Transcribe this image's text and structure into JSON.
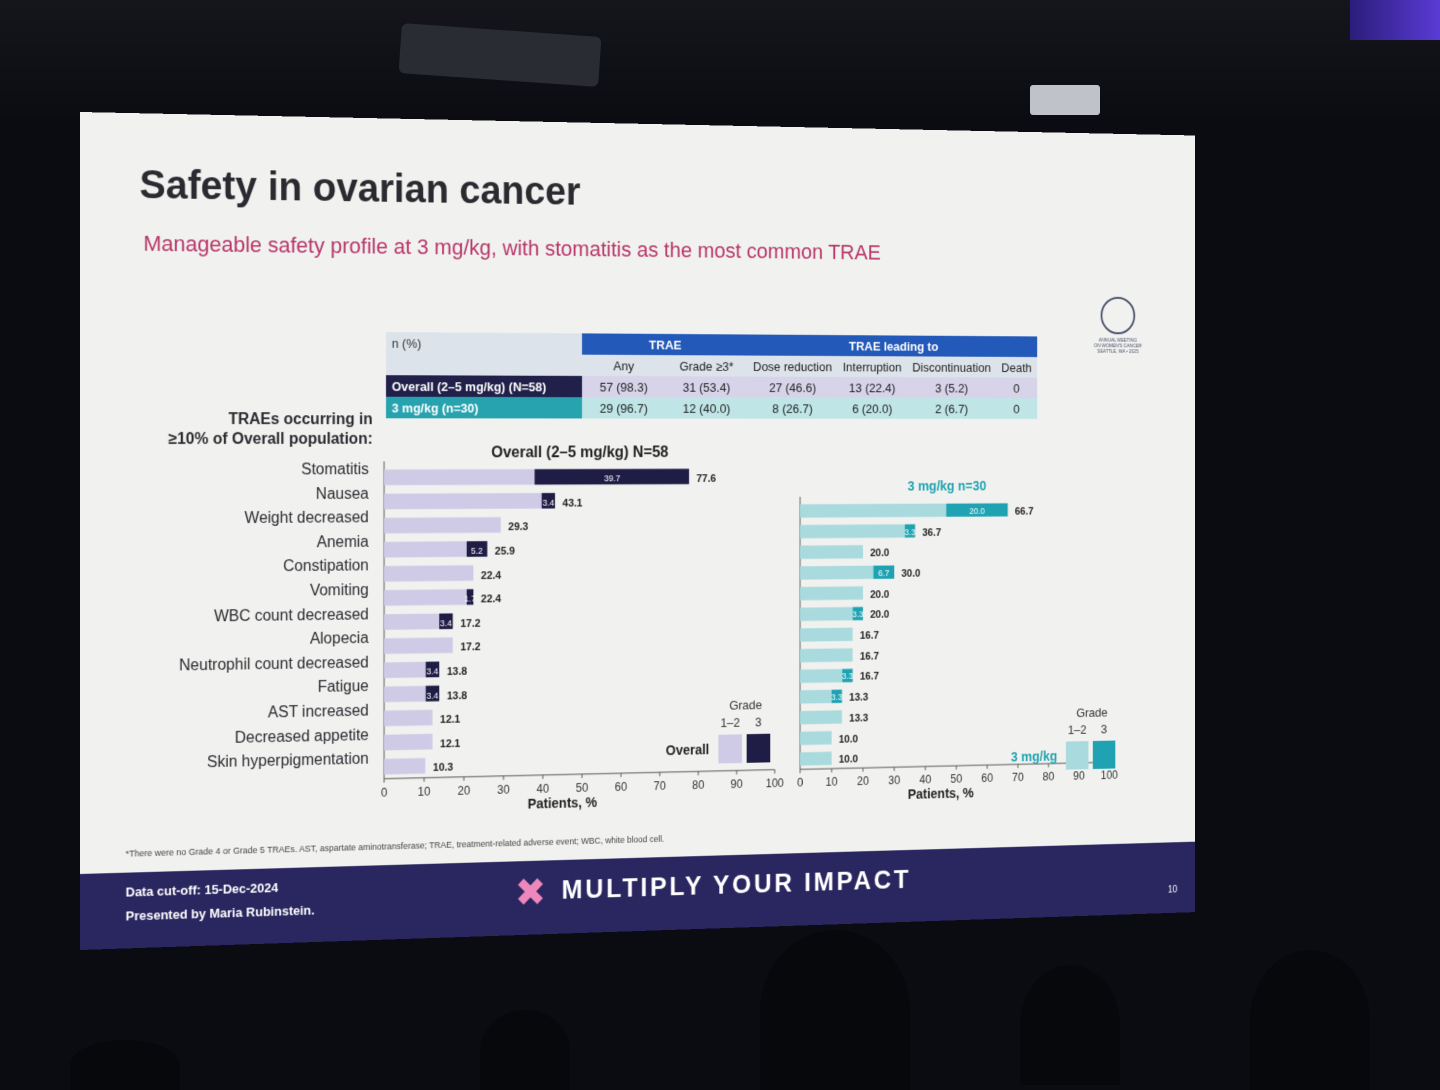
{
  "slide": {
    "title": "Safety in ovarian cancer",
    "subtitle": "Manageable safety profile at 3 mg/kg, with stomatitis as the most common TRAE",
    "logo_text": [
      "ANNUAL MEETING",
      "ON WOMEN'S CANCER",
      "SEATTLE, WA • 2025"
    ],
    "footnote": "*There were no Grade 4 or Grade 5 TRAEs. AST, aspartate aminotransferase; TRAE, treatment-related adverse event; WBC, white blood cell.",
    "cutoff": "Data cut-off: 15-Dec-2024",
    "presenter": "Presented by Maria Rubinstein.",
    "brand": "MULTIPLY YOUR IMPACT",
    "page_number": "10"
  },
  "table": {
    "n_label": "n (%)",
    "trae_label": "TRAE",
    "any_label": "Any",
    "grade3_label": "Grade ≥3*",
    "leading_label": "TRAE leading to",
    "columns": [
      "Dose reduction",
      "Interruption",
      "Discontinuation",
      "Death"
    ],
    "rows": [
      {
        "label": "Overall  (2–5 mg/kg) (N=58)",
        "any": "57 (98.3)",
        "grade3": "31 (53.4)",
        "dose_reduction": "27 (46.6)",
        "interruption": "13 (22.4)",
        "discontinuation": "3 (5.2)",
        "death": "0"
      },
      {
        "label": "3 mg/kg (n=30)",
        "any": "29 (96.7)",
        "grade3": "12 (40.0)",
        "dose_reduction": "8 (26.7)",
        "interruption": "6 (20.0)",
        "discontinuation": "2 (6.7)",
        "death": "0"
      }
    ]
  },
  "left_heading": [
    "TRAEs occurring in",
    "≥10% of Overall population:"
  ],
  "chart_data": [
    {
      "type": "bar",
      "orientation": "horizontal",
      "stacked": true,
      "title": "Overall (2–5 mg/kg) N=58",
      "xlabel": "Patients, %",
      "xlim": [
        0,
        100
      ],
      "xticks": [
        "0",
        "10",
        "20",
        "30",
        "40",
        "50",
        "60",
        "70",
        "80",
        "90",
        "100"
      ],
      "categories": [
        "Stomatitis",
        "Nausea",
        "Weight decreased",
        "Anemia",
        "Constipation",
        "Vomiting",
        "WBC count decreased",
        "Alopecia",
        "Neutrophil count decreased",
        "Fatigue",
        "AST increased",
        "Decreased appetite",
        "Skin hyperpigmentation"
      ],
      "totals": [
        77.6,
        43.1,
        29.3,
        25.9,
        22.4,
        22.4,
        17.2,
        17.2,
        13.8,
        13.8,
        12.1,
        12.1,
        10.3
      ],
      "grade3": [
        39.7,
        3.4,
        0,
        5.2,
        0,
        1.7,
        3.4,
        0,
        3.4,
        3.4,
        0,
        0,
        0
      ],
      "grade3_labels": [
        "39.7",
        "3.4",
        "",
        "5.2",
        "",
        "1.7",
        "3.4",
        "",
        "3.4",
        "3.4",
        "",
        "",
        ""
      ],
      "legend": {
        "title": "Grade",
        "items": [
          "1–2",
          "3"
        ],
        "group": "Overall"
      },
      "colors": {
        "grade12": "#cfcbe6",
        "grade3": "#1f1d45"
      }
    },
    {
      "type": "bar",
      "orientation": "horizontal",
      "stacked": true,
      "title": "3 mg/kg n=30",
      "xlabel": "Patients, %",
      "xlim": [
        0,
        100
      ],
      "xticks": [
        "0",
        "10",
        "20",
        "30",
        "40",
        "50",
        "60",
        "70",
        "80",
        "90",
        "100"
      ],
      "categories": [
        "Stomatitis",
        "Nausea",
        "Weight decreased",
        "Anemia",
        "Constipation",
        "Vomiting",
        "WBC count decreased",
        "Alopecia",
        "Neutrophil count decreased",
        "Fatigue",
        "AST increased",
        "Decreased appetite",
        "Skin hyperpigmentation"
      ],
      "totals": [
        66.7,
        36.7,
        20.0,
        30.0,
        20.0,
        20.0,
        16.7,
        16.7,
        16.7,
        13.3,
        13.3,
        10.0,
        10.0
      ],
      "grade3": [
        20.0,
        3.3,
        0,
        6.7,
        0,
        3.3,
        0,
        0,
        3.3,
        3.3,
        0,
        0,
        0
      ],
      "grade3_labels": [
        "20.0",
        "3.3",
        "",
        "6.7",
        "",
        "3.3",
        "",
        "",
        "3.3",
        "3.3",
        "",
        "",
        ""
      ],
      "legend": {
        "title": "Grade",
        "items": [
          "1–2",
          "3"
        ],
        "group": "3 mg/kg"
      },
      "colors": {
        "grade12": "#a9dadd",
        "grade3": "#1fa3b2"
      }
    }
  ]
}
